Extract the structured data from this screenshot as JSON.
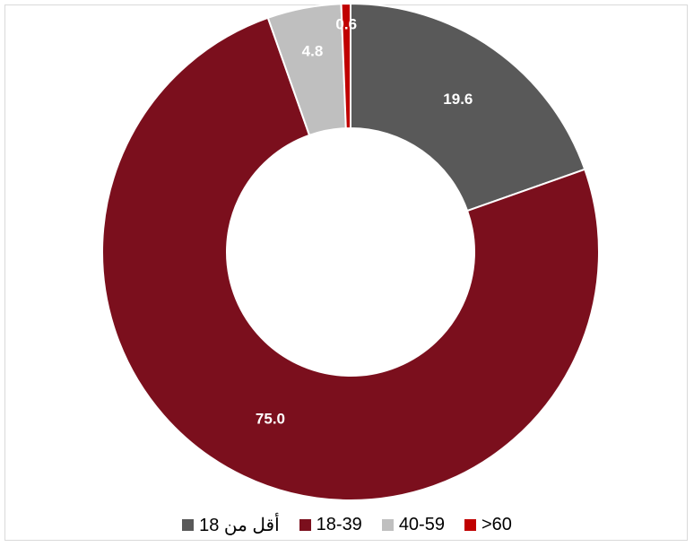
{
  "chart_data": {
    "type": "pie",
    "donut": true,
    "categories": [
      "أقل من 18",
      "18-39",
      "40-59",
      ">60"
    ],
    "values": [
      19.6,
      75.0,
      4.8,
      0.6
    ],
    "data_labels": [
      "19.6",
      "75.0",
      "4.8",
      "0.6"
    ],
    "colors": [
      "#595959",
      "#7b0f1d",
      "#bfbfbf",
      "#c00000"
    ],
    "legend_position": "bottom"
  }
}
